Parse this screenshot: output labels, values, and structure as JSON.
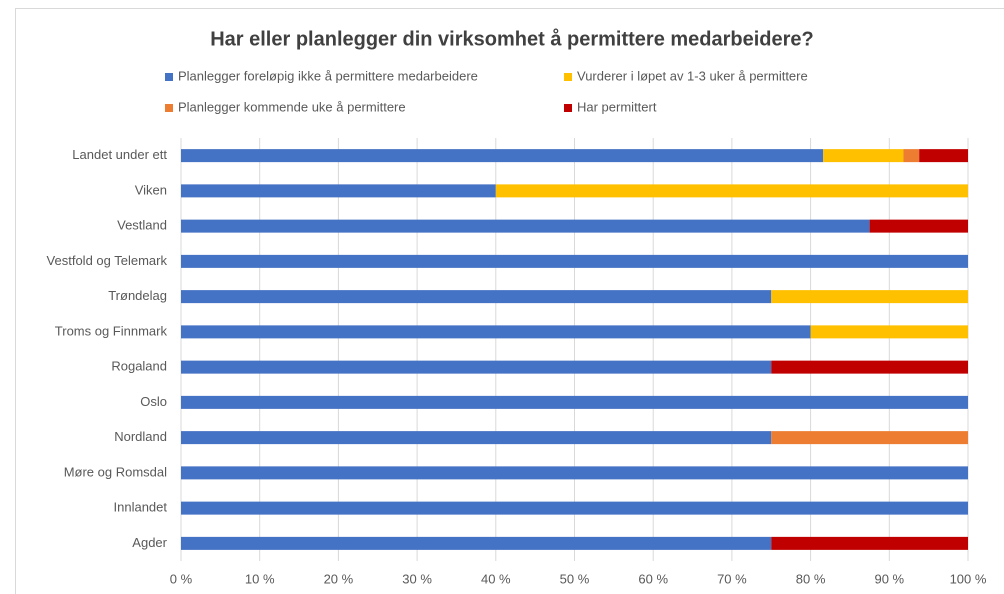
{
  "chart_data": {
    "type": "stacked-bar-horizontal",
    "title": "Har eller planlegger din virksomhet å permittere medarbeidere?",
    "categories": [
      "Landet under ett",
      "Viken",
      "Vestland",
      "Vestfold og Telemark",
      "Trøndelag",
      "Troms og Finnmark",
      "Rogaland",
      "Oslo",
      "Nordland",
      "Møre og Romsdal",
      "Innlandet",
      "Agder"
    ],
    "series": [
      {
        "name": "Planlegger foreløpig ikke å permittere medarbeidere",
        "color": "#4472c4",
        "values": [
          81.6,
          40,
          87.5,
          100,
          75,
          80,
          75,
          100,
          75,
          100,
          100,
          75
        ]
      },
      {
        "name": "Vurderer i løpet av 1-3 uker å permittere",
        "color": "#ffc000",
        "values": [
          10.2,
          60,
          0,
          0,
          25,
          20,
          0,
          0,
          0,
          0,
          0,
          0
        ]
      },
      {
        "name": "Planlegger kommende uke å permittere",
        "color": "#ed7d31",
        "values": [
          2.0,
          0,
          0,
          0,
          0,
          0,
          0,
          0,
          25,
          0,
          0,
          0
        ]
      },
      {
        "name": "Har permittert",
        "color": "#c00000",
        "values": [
          6.2,
          0,
          12.5,
          0,
          0,
          0,
          25,
          0,
          0,
          0,
          0,
          25
        ]
      }
    ],
    "xlim": [
      0,
      100
    ],
    "xticks": [
      {
        "value": 0,
        "label": "0 %"
      },
      {
        "value": 10,
        "label": "10 %"
      },
      {
        "value": 20,
        "label": "20 %"
      },
      {
        "value": 30,
        "label": "30 %"
      },
      {
        "value": 40,
        "label": "40 %"
      },
      {
        "value": 50,
        "label": "50 %"
      },
      {
        "value": 60,
        "label": "60 %"
      },
      {
        "value": 70,
        "label": "70 %"
      },
      {
        "value": 80,
        "label": "80 %"
      },
      {
        "value": 90,
        "label": "90 %"
      },
      {
        "value": 100,
        "label": "100 %"
      }
    ],
    "grid": true
  }
}
